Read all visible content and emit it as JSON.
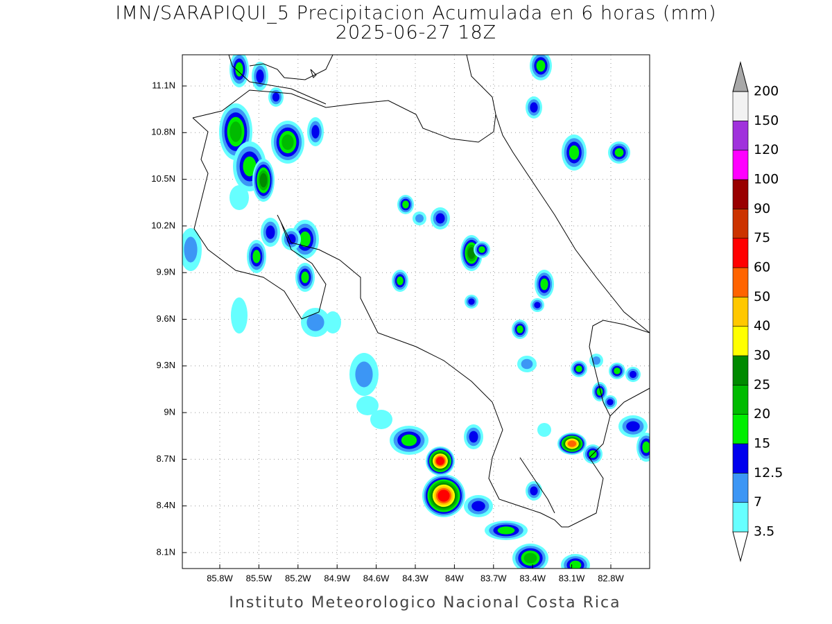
{
  "title": "IMN/SARAPIQUI_5 Precipitacion Acumulada en 6 horas (mm)",
  "subtitle": "2025-06-27 18Z",
  "map": {
    "lon_labels": [
      "85.8W",
      "85.5W",
      "85.2W",
      "84.9W",
      "84.6W",
      "84.3W",
      "84W",
      "83.7W",
      "83.4W",
      "83.1W",
      "82.8W"
    ],
    "lat_labels": [
      "11.1N",
      "10.8N",
      "10.5N",
      "10.2N",
      "9.9N",
      "9.6N",
      "9.3N",
      "9N",
      "8.7N",
      "8.4N",
      "8.1N"
    ]
  },
  "colorbar": {
    "levels": [
      3.5,
      7,
      12.5,
      15,
      20,
      25,
      30,
      40,
      50,
      60,
      75,
      90,
      100,
      120,
      150,
      200
    ],
    "colors": [
      "#ffffff",
      "#66ffff",
      "#3c96f5",
      "#0000ee",
      "#00ee00",
      "#00bb00",
      "#008a00",
      "#ffff00",
      "#ffc800",
      "#ff6400",
      "#ff0000",
      "#cc3300",
      "#990000",
      "#ff00ff",
      "#a032dc",
      "#f2f2f2",
      "#a8a8a8"
    ]
  },
  "footer": "Instituto Meteorologico Nacional Costa Rica"
}
